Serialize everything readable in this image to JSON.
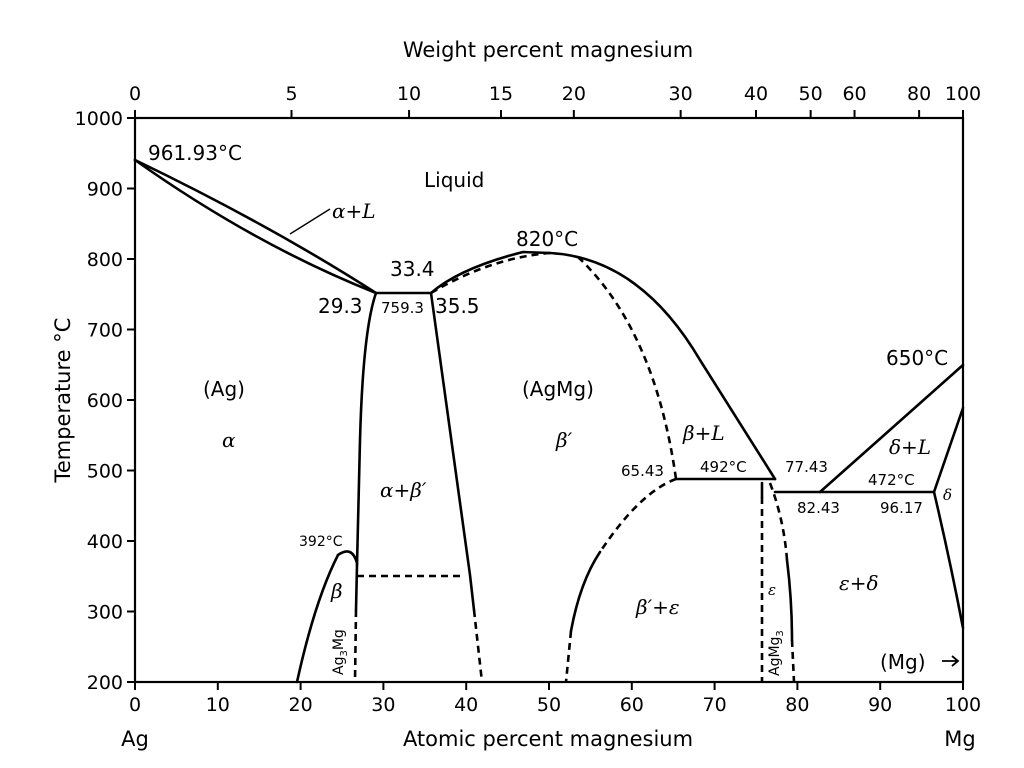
{
  "diagram": {
    "top_axis": {
      "title": "Weight percent magnesium",
      "ticks": [
        {
          "label": "0",
          "at_pct": 0
        },
        {
          "label": "5",
          "at_pct": 18.9
        },
        {
          "label": "10",
          "at_pct": 33.1
        },
        {
          "label": "15",
          "at_pct": 44.2
        },
        {
          "label": "20",
          "at_pct": 53.0
        },
        {
          "label": "30",
          "at_pct": 65.9
        },
        {
          "label": "40",
          "at_pct": 75.0
        },
        {
          "label": "50",
          "at_pct": 81.6
        },
        {
          "label": "60",
          "at_pct": 86.9
        },
        {
          "label": "80",
          "at_pct": 94.7
        },
        {
          "label": "100",
          "at_pct": 100
        }
      ]
    },
    "bottom_axis": {
      "title": "Atomic percent magnesium",
      "left_element": "Ag",
      "right_element": "Mg",
      "range": [
        0,
        100
      ],
      "ticks": [
        "0",
        "10",
        "20",
        "30",
        "40",
        "50",
        "60",
        "70",
        "80",
        "90",
        "100"
      ]
    },
    "left_axis": {
      "title": "Temperature °C",
      "range": [
        200,
        1000
      ],
      "ticks": [
        "200",
        "300",
        "400",
        "500",
        "600",
        "700",
        "800",
        "900",
        "1000"
      ]
    },
    "annotations": {
      "ag_melt": "961.93°C",
      "liquid": "Liquid",
      "alpha_l": "α+L",
      "peritectic_temp": "33.4",
      "p1": "29.3",
      "p2": "759.3",
      "p3": "35.5",
      "max_temp": "820°C",
      "mg_melt": "650°C",
      "ag_region": "(Ag)",
      "alpha": "α",
      "agmg_region": "(AgMg)",
      "beta_prime": "β′",
      "beta_l": "β+L",
      "alpha_beta_prime": "α+β′",
      "e1": "65.43",
      "e_temp1": "492°C",
      "e2": "77.43",
      "delta_l": "δ+L",
      "e3": "82.43",
      "e_temp2": "472°C",
      "e4": "96.17",
      "delta": "δ",
      "beta_temp": "392°C",
      "beta": "β",
      "ag3mg_base": "Ag",
      "ag3mg_sub": "3",
      "ag3mg_end": "Mg",
      "beta_prime_eps": "β′+ε",
      "epsilon": "ε",
      "agmg3_base": "AgMg",
      "agmg3_sub": "3",
      "eps_delta": "ε+δ",
      "mg_region": "(Mg)",
      "mg_arrow": "→"
    }
  }
}
